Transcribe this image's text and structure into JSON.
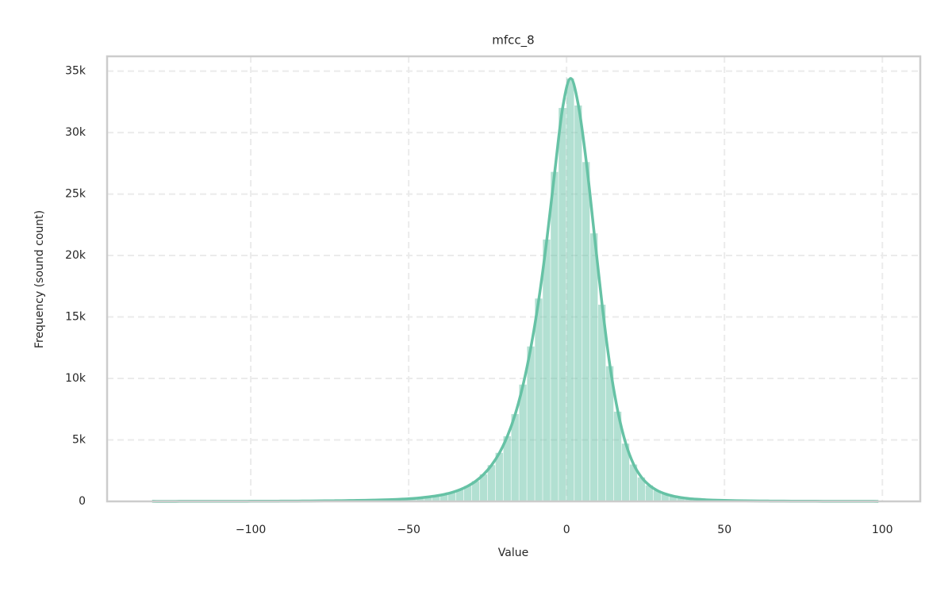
{
  "chart_data": {
    "type": "histogram",
    "title": "mfcc_8",
    "x_label": "Value",
    "y_label": "Frequency (sound count)",
    "bins": [
      -132.5,
      -130,
      -127.5,
      -125,
      -122.5,
      -120,
      -117.5,
      -115,
      -112.5,
      -110,
      -107.5,
      -105,
      -102.5,
      -100,
      -97.5,
      -95,
      -92.5,
      -90,
      -87.5,
      -85,
      -82.5,
      -80,
      -77.5,
      -75,
      -72.5,
      -70,
      -67.5,
      -65,
      -62.5,
      -60,
      -57.5,
      -55,
      -52.5,
      -50,
      -47.5,
      -45,
      -42.5,
      -40,
      -37.5,
      -35,
      -32.5,
      -30,
      -27.5,
      -25,
      -22.5,
      -20,
      -17.5,
      -15,
      -12.5,
      -10,
      -7.5,
      -5,
      -2.5,
      0,
      2.5,
      5,
      7.5,
      10,
      12.5,
      15,
      17.5,
      20,
      22.5,
      25,
      27.5,
      30,
      32.5,
      35,
      37.5,
      40,
      42.5,
      45,
      47.5,
      50,
      52.5,
      55,
      57.5,
      60,
      62.5,
      65,
      67.5,
      70,
      72.5,
      75,
      77.5,
      80,
      82.5,
      85,
      87.5,
      90,
      92.5,
      95,
      97.5,
      100
    ],
    "values": [
      5,
      3,
      4,
      4,
      6,
      5,
      7,
      6,
      8,
      9,
      10,
      11,
      12,
      14,
      16,
      18,
      20,
      23,
      26,
      30,
      34,
      39,
      45,
      52,
      60,
      70,
      80,
      92,
      105,
      120,
      140,
      165,
      195,
      235,
      290,
      360,
      450,
      570,
      730,
      950,
      1250,
      1650,
      2200,
      2950,
      3950,
      5300,
      7100,
      9500,
      12600,
      16500,
      21300,
      26800,
      32000,
      34400,
      32200,
      27600,
      21800,
      16000,
      11000,
      7300,
      4700,
      3000,
      1950,
      1300,
      880,
      610,
      430,
      310,
      230,
      175,
      135,
      105,
      85,
      70,
      58,
      48,
      40,
      34,
      29,
      25,
      22,
      19,
      17,
      15,
      13,
      12,
      10,
      9,
      8,
      7,
      6,
      5,
      4
    ],
    "color": "#66c2a5",
    "kde": true,
    "xlim": [
      -145.5,
      112
    ],
    "ylim": [
      0,
      36200
    ],
    "xticks": [
      {
        "value": -100,
        "label": "−100"
      },
      {
        "value": -50,
        "label": "−50"
      },
      0,
      50,
      100
    ],
    "yticks": [
      0,
      {
        "value": 5000,
        "label": "5k"
      },
      {
        "value": 10000,
        "label": "10k"
      },
      {
        "value": 15000,
        "label": "15k"
      },
      {
        "value": 20000,
        "label": "20k"
      },
      {
        "value": 25000,
        "label": "25k"
      },
      {
        "value": 30000,
        "label": "30k"
      },
      {
        "value": 35000,
        "label": "35k"
      }
    ],
    "grid": true
  }
}
